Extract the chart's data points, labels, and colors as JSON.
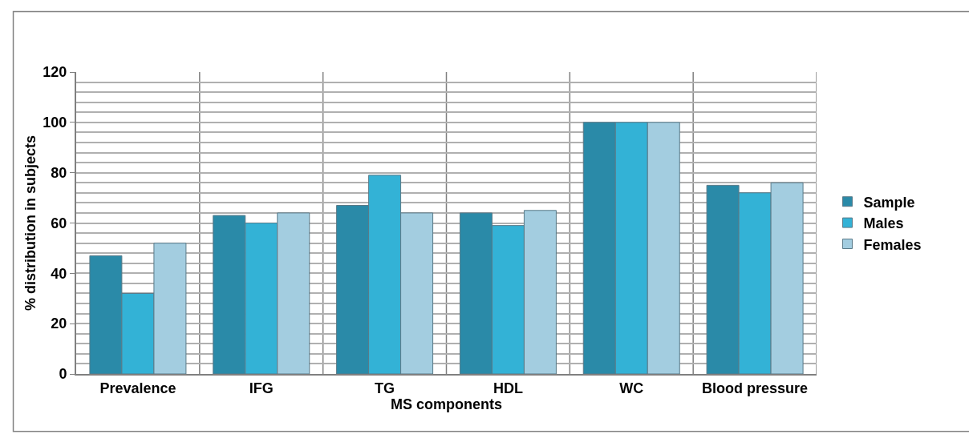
{
  "chart_data": {
    "type": "bar",
    "xlabel": "MS components",
    "ylabel": "% distribution in subjects",
    "categories": [
      "Prevalence",
      "IFG",
      "TG",
      "HDL",
      "WC",
      "Blood pressure"
    ],
    "series": [
      {
        "name": "Sample",
        "color": "#2a8aa8",
        "values": [
          47,
          63,
          67,
          64,
          100,
          75
        ]
      },
      {
        "name": "Males",
        "color": "#33b2d6",
        "values": [
          32,
          60,
          79,
          59,
          100,
          72
        ]
      },
      {
        "name": "Females",
        "color": "#a3cde0",
        "values": [
          52,
          64,
          64,
          65,
          100,
          76
        ]
      }
    ],
    "ylim": [
      0,
      120
    ],
    "yticks": [
      0,
      20,
      40,
      60,
      80,
      100,
      120
    ],
    "grid": true,
    "legend": "right"
  }
}
